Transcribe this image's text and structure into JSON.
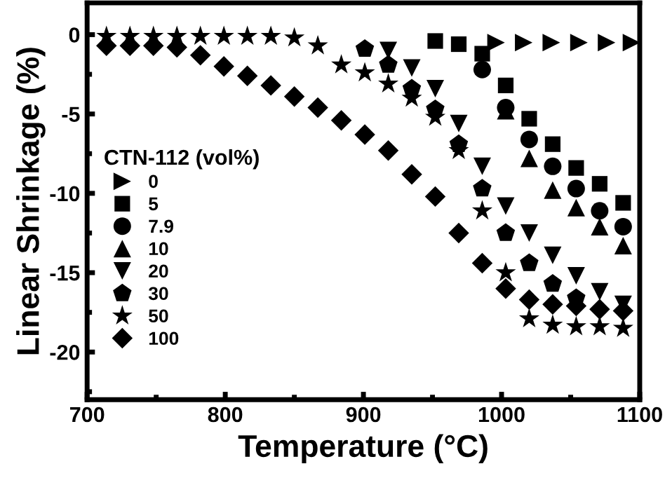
{
  "chart_data": {
    "type": "scatter",
    "xlabel": "Temperature (°C)",
    "ylabel": "Linear Shrinkage (%)",
    "legend_title": "CTN-112 (vol%)",
    "legend": "left",
    "xlim": [
      700,
      1100
    ],
    "ylim": [
      -23,
      2
    ],
    "xticks": [
      700,
      800,
      900,
      1000,
      1100
    ],
    "yticks": [
      -20,
      -15,
      -10,
      -5,
      0
    ],
    "grid": false,
    "series": [
      {
        "name": "0",
        "marker": "triangle_right",
        "color": "#000000",
        "x": [
          996,
          1016,
          1036,
          1056,
          1076,
          1094
        ],
        "values": [
          -0.5,
          -0.5,
          -0.5,
          -0.5,
          -0.5,
          -0.5
        ]
      },
      {
        "name": "5",
        "marker": "square",
        "color": "#000000",
        "x": [
          952,
          969,
          986,
          1003,
          1020,
          1037,
          1054,
          1071,
          1088
        ],
        "values": [
          -0.4,
          -0.6,
          -1.2,
          -3.2,
          -5.3,
          -6.9,
          -8.4,
          -9.4,
          -10.6
        ]
      },
      {
        "name": "7.9",
        "marker": "circle",
        "color": "#000000",
        "x": [
          986,
          1003,
          1020,
          1037,
          1054,
          1071,
          1088
        ],
        "values": [
          -2.2,
          -4.6,
          -6.6,
          -8.3,
          -9.7,
          -11.1,
          -12.1
        ]
      },
      {
        "name": "10",
        "marker": "triangle",
        "color": "#000000",
        "x": [
          1003,
          1020,
          1037,
          1054,
          1071,
          1088
        ],
        "values": [
          -4.8,
          -7.8,
          -9.8,
          -10.9,
          -12.1,
          -13.3
        ]
      },
      {
        "name": "20",
        "marker": "triangle_down",
        "color": "#000000",
        "x": [
          918,
          935,
          952,
          969,
          986,
          1003,
          1020,
          1037,
          1054,
          1071,
          1088
        ],
        "values": [
          -1.0,
          -2.1,
          -3.4,
          -5.6,
          -8.3,
          -10.8,
          -12.5,
          -13.9,
          -15.2,
          -16.2,
          -17.0
        ]
      },
      {
        "name": "30",
        "color": "#000000",
        "x": [
          901,
          918,
          935,
          952,
          969,
          986,
          1003,
          1020,
          1037,
          1054
        ],
        "values": [
          -0.9,
          -1.9,
          -3.4,
          -4.7,
          -6.9,
          -9.7,
          -12.5,
          -14.4,
          -15.7,
          -16.6
        ]
      },
      {
        "name": "50",
        "marker": "star",
        "color": "#000000",
        "x": [
          714,
          731,
          748,
          765,
          782,
          799,
          816,
          833,
          850,
          867,
          884,
          901,
          918,
          935,
          952,
          969,
          986,
          1003,
          1020,
          1037,
          1054,
          1071,
          1088
        ],
        "values": [
          -0.1,
          -0.1,
          -0.1,
          -0.1,
          -0.1,
          -0.1,
          -0.1,
          -0.1,
          -0.2,
          -0.7,
          -1.9,
          -2.4,
          -3.1,
          -4.0,
          -5.2,
          -7.3,
          -11.1,
          -15.0,
          -17.9,
          -18.3,
          -18.4,
          -18.4,
          -18.5
        ]
      },
      {
        "name": "100",
        "marker": "diamond",
        "color": "#000000",
        "x": [
          714,
          731,
          748,
          765,
          782,
          799,
          816,
          833,
          850,
          867,
          884,
          901,
          918,
          935,
          952,
          969,
          986,
          1003,
          1020,
          1037,
          1054,
          1071,
          1088
        ],
        "values": [
          -0.7,
          -0.7,
          -0.7,
          -0.8,
          -1.3,
          -2.0,
          -2.6,
          -3.2,
          -3.9,
          -4.6,
          -5.4,
          -6.3,
          -7.3,
          -8.8,
          -10.2,
          -12.5,
          -14.4,
          -16.0,
          -16.7,
          -17.0,
          -17.1,
          -17.3,
          -17.4
        ]
      }
    ]
  }
}
